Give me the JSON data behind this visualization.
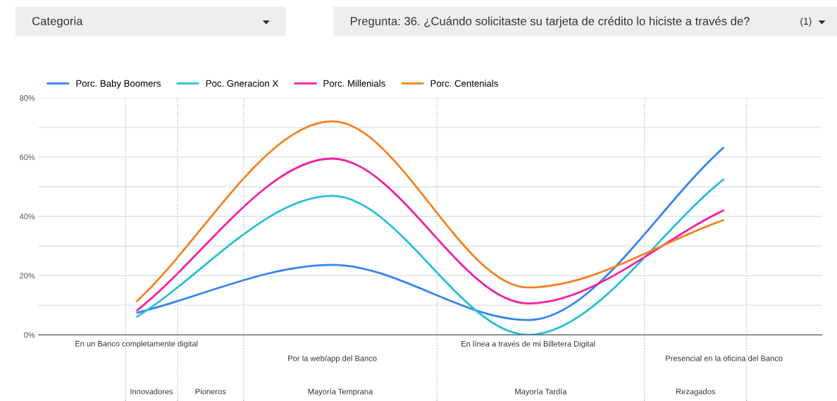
{
  "chart_data": {
    "type": "line",
    "categories": [
      "En un Banco completamente digital",
      "Por la web/app del Banco",
      "En línea a través de mi Billetera Digital",
      "Presencial en la oficina del Banco"
    ],
    "series": [
      {
        "name": "Porc. Baby Boomers",
        "color": "#3385f0",
        "values": [
          7.4,
          23.6,
          5.0,
          63.3
        ]
      },
      {
        "name": "Poc. Gneracion X",
        "color": "#26c0d3",
        "values": [
          6.0,
          46.9,
          0.0,
          52.6
        ]
      },
      {
        "name": "Porc. Millenials",
        "color": "#f21fa8",
        "values": [
          8.1,
          59.5,
          10.6,
          42.1
        ]
      },
      {
        "name": "Porc. Centenials",
        "color": "#f58220",
        "values": [
          11.2,
          72.1,
          16.0,
          38.8
        ]
      }
    ],
    "ylim": [
      0,
      80
    ],
    "yticks": [
      {
        "value": 0,
        "label": "0%"
      },
      {
        "value": 10,
        "label": null
      },
      {
        "value": 20,
        "label": "20%"
      },
      {
        "value": 30,
        "label": null
      },
      {
        "value": 40,
        "label": "40%"
      },
      {
        "value": 50,
        "label": null
      },
      {
        "value": 60,
        "label": "60%"
      },
      {
        "value": 70,
        "label": null
      },
      {
        "value": 80,
        "label": "80%"
      }
    ],
    "grid": "y",
    "legend": "top left",
    "marker": "none",
    "line_style": "solid",
    "annotations": [
      "Categoria",
      "Pregunta: 36. ¿Cuándo solicitaste su tarjeta de crédito lo hiciste a través de?",
      "(1)",
      "Innovadores",
      "Pioneros",
      "Mayoría Temprana",
      "Mayoría Tardía",
      "Rezagados"
    ]
  }
}
